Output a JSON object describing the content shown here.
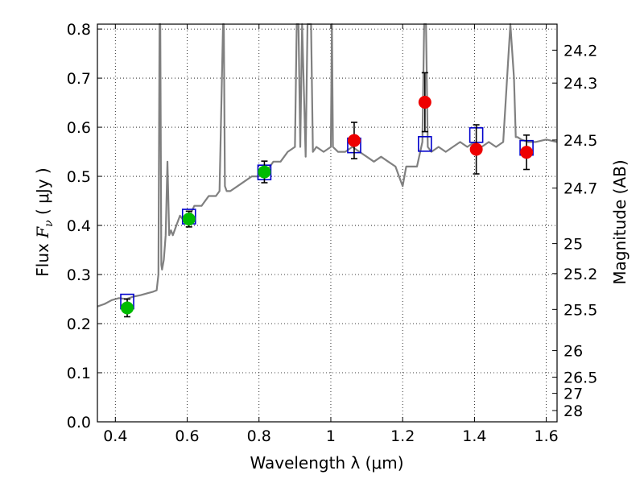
{
  "chart_data": {
    "type": "scatter",
    "xlabel": "Wavelength  λ (μm)",
    "ylabel_left": {
      "prefix": "Flux ",
      "symbol": "F",
      "subscript": "ν",
      "unit": "  ( μJy )"
    },
    "ylabel_right": "Magnitude (AB)",
    "xlim": [
      0.35,
      1.63
    ],
    "ylim": [
      0.0,
      0.81
    ],
    "grid": true,
    "x_ticks": [
      {
        "value": 0.4,
        "label": "0.4"
      },
      {
        "value": 0.6,
        "label": "0.6"
      },
      {
        "value": 0.8,
        "label": "0.8"
      },
      {
        "value": 1.0,
        "label": "1"
      },
      {
        "value": 1.2,
        "label": "1.2"
      },
      {
        "value": 1.4,
        "label": "1.4"
      },
      {
        "value": 1.6,
        "label": "1.6"
      }
    ],
    "y_ticks": [
      {
        "value": 0.0,
        "label": "0.0"
      },
      {
        "value": 0.1,
        "label": "0.1"
      },
      {
        "value": 0.2,
        "label": "0.2"
      },
      {
        "value": 0.3,
        "label": "0.3"
      },
      {
        "value": 0.4,
        "label": "0.4"
      },
      {
        "value": 0.5,
        "label": "0.5"
      },
      {
        "value": 0.6,
        "label": "0.6"
      },
      {
        "value": 0.7,
        "label": "0.7"
      },
      {
        "value": 0.8,
        "label": "0.8"
      }
    ],
    "right_ticks": [
      {
        "flux": 0.757,
        "label": "24.2"
      },
      {
        "flux": 0.69,
        "label": "24.3"
      },
      {
        "flux": 0.574,
        "label": "24.5"
      },
      {
        "flux": 0.476,
        "label": "24.7"
      },
      {
        "flux": 0.363,
        "label": "25"
      },
      {
        "flux": 0.302,
        "label": "25.2"
      },
      {
        "flux": 0.229,
        "label": "25.5"
      },
      {
        "flux": 0.145,
        "label": "26"
      },
      {
        "flux": 0.091,
        "label": "26.5"
      },
      {
        "flux": 0.058,
        "label": "27"
      },
      {
        "flux": 0.023,
        "label": "28"
      }
    ],
    "series": [
      {
        "marker": "line",
        "color": "#808080",
        "x": [
          0.35,
          0.37,
          0.39,
          0.41,
          0.43,
          0.45,
          0.47,
          0.49,
          0.505,
          0.515,
          0.52,
          0.523,
          0.525,
          0.528,
          0.53,
          0.535,
          0.538,
          0.54,
          0.545,
          0.55,
          0.555,
          0.56,
          0.57,
          0.58,
          0.59,
          0.6,
          0.61,
          0.62,
          0.64,
          0.66,
          0.68,
          0.69,
          0.7,
          0.702,
          0.705,
          0.71,
          0.72,
          0.74,
          0.76,
          0.78,
          0.8,
          0.82,
          0.84,
          0.86,
          0.88,
          0.9,
          0.905,
          0.91,
          0.915,
          0.92,
          0.93,
          0.935,
          0.94,
          0.945,
          0.95,
          0.96,
          0.98,
          1.0,
          1.003,
          1.006,
          1.02,
          1.04,
          1.06,
          1.08,
          1.1,
          1.12,
          1.14,
          1.16,
          1.18,
          1.19,
          1.2,
          1.21,
          1.22,
          1.24,
          1.255,
          1.26,
          1.265,
          1.27,
          1.28,
          1.3,
          1.32,
          1.34,
          1.36,
          1.38,
          1.4,
          1.42,
          1.44,
          1.46,
          1.48,
          1.5,
          1.51,
          1.515,
          1.52,
          1.53,
          1.55,
          1.57,
          1.6,
          1.63
        ],
        "values": [
          0.235,
          0.24,
          0.248,
          0.252,
          0.25,
          0.255,
          0.258,
          0.262,
          0.265,
          0.268,
          0.3,
          0.81,
          0.81,
          0.32,
          0.31,
          0.33,
          0.36,
          0.38,
          0.53,
          0.38,
          0.39,
          0.38,
          0.4,
          0.42,
          0.41,
          0.42,
          0.425,
          0.44,
          0.44,
          0.46,
          0.46,
          0.47,
          0.81,
          0.81,
          0.48,
          0.47,
          0.47,
          0.48,
          0.49,
          0.5,
          0.5,
          0.51,
          0.53,
          0.53,
          0.55,
          0.56,
          0.81,
          0.81,
          0.56,
          0.81,
          0.54,
          0.81,
          0.81,
          0.81,
          0.55,
          0.56,
          0.55,
          0.56,
          0.81,
          0.56,
          0.55,
          0.55,
          0.56,
          0.55,
          0.54,
          0.53,
          0.54,
          0.53,
          0.52,
          0.5,
          0.48,
          0.52,
          0.52,
          0.52,
          0.57,
          0.81,
          0.81,
          0.56,
          0.55,
          0.56,
          0.55,
          0.56,
          0.57,
          0.56,
          0.57,
          0.56,
          0.57,
          0.56,
          0.57,
          0.81,
          0.7,
          0.58,
          0.58,
          0.575,
          0.57,
          0.57,
          0.575,
          0.57
        ]
      },
      {
        "marker": "open-square",
        "color": "#0000cc",
        "x": [
          0.433,
          0.605,
          0.815,
          1.065,
          1.262,
          1.405,
          1.545
        ],
        "values": [
          0.245,
          0.418,
          0.508,
          0.563,
          0.566,
          0.584,
          0.558
        ]
      },
      {
        "marker": "filled-circle",
        "color": "#00bb00",
        "x": [
          0.433,
          0.605,
          0.815
        ],
        "values": [
          0.232,
          0.413,
          0.509
        ],
        "errors": [
          0.018,
          0.016,
          0.022
        ]
      },
      {
        "marker": "filled-circle",
        "color": "#ee0000",
        "x": [
          1.065,
          1.262,
          1.405,
          1.545
        ],
        "values": [
          0.573,
          0.651,
          0.555,
          0.549
        ],
        "errors": [
          0.037,
          0.06,
          0.05,
          0.035
        ]
      }
    ]
  }
}
